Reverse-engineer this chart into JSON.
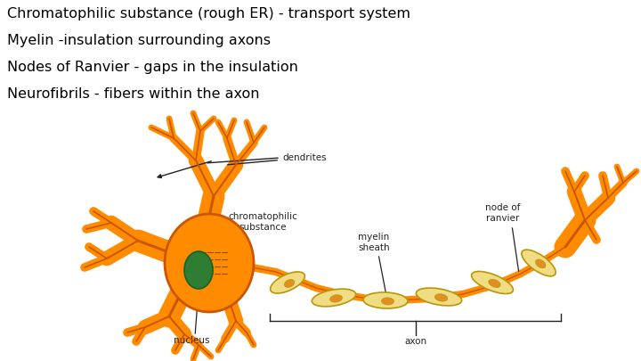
{
  "background_color": "#ffffff",
  "text_lines": [
    "Chromatophilic substance (rough ER) - transport system",
    "Myelin -insulation surrounding axons",
    "Nodes of Ranvier - gaps in the insulation",
    "Neurofibrils - fibers within the axon"
  ],
  "text_fontsize": 11.5,
  "text_color": "#000000",
  "orange_fill": "#FF8C00",
  "orange_edge": "#CC5500",
  "yellow_fill": "#F0DC82",
  "yellow_edge": "#B8960C",
  "green_fill": "#2E7D32",
  "green_edge": "#1B5E20",
  "annotation_fontsize": 7.5,
  "annotation_color": "#222222"
}
